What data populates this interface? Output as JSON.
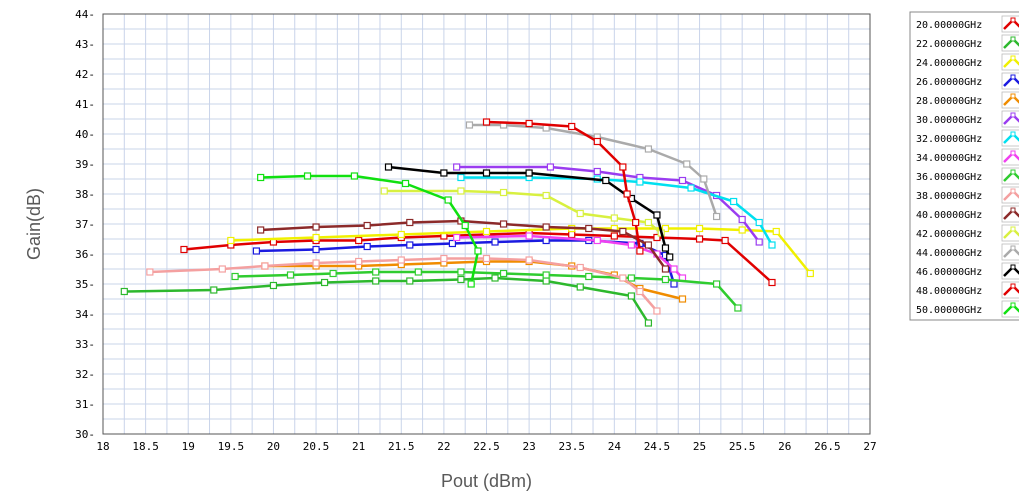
{
  "chart_data": {
    "type": "line",
    "title": "",
    "xlabel": "Pout (dBm)",
    "ylabel": "Gain(dB)",
    "xlim": [
      18,
      27
    ],
    "ylim": [
      30,
      44
    ],
    "x_ticks": [
      "18",
      "18.5",
      "19",
      "19.5",
      "20",
      "20.5",
      "21",
      "21.5",
      "22",
      "22.5",
      "23",
      "23.5",
      "24",
      "24.5",
      "25",
      "25.5",
      "26",
      "26.5",
      "27"
    ],
    "y_ticks": [
      "30",
      "31",
      "32",
      "33",
      "34",
      "35",
      "36",
      "37",
      "38",
      "39",
      "40",
      "41",
      "42",
      "43",
      "44"
    ],
    "grid": true,
    "legend_position": "right",
    "series": [
      {
        "name": "20.00000GHz",
        "color": "#e00000",
        "points": [
          [
            18.95,
            36.15
          ],
          [
            19.5,
            36.3
          ],
          [
            20,
            36.4
          ],
          [
            20.5,
            36.45
          ],
          [
            21,
            36.45
          ],
          [
            21.5,
            36.55
          ],
          [
            22,
            36.6
          ],
          [
            22.5,
            36.65
          ],
          [
            23,
            36.7
          ],
          [
            23.5,
            36.65
          ],
          [
            24,
            36.6
          ],
          [
            24.5,
            36.55
          ],
          [
            25,
            36.5
          ],
          [
            25.3,
            36.45
          ],
          [
            25.85,
            35.05
          ]
        ]
      },
      {
        "name": "22.00000GHz",
        "color": "#2db82d",
        "points": [
          [
            18.25,
            34.75
          ],
          [
            19.3,
            34.8
          ],
          [
            20,
            34.95
          ],
          [
            20.6,
            35.05
          ],
          [
            21.2,
            35.1
          ],
          [
            21.6,
            35.1
          ],
          [
            22.2,
            35.15
          ],
          [
            22.6,
            35.2
          ],
          [
            23.2,
            35.1
          ],
          [
            23.6,
            34.9
          ],
          [
            24.2,
            34.6
          ],
          [
            24.4,
            33.7
          ]
        ]
      },
      {
        "name": "24.00000GHz",
        "color": "#f0f000",
        "points": [
          [
            19.5,
            36.45
          ],
          [
            20.5,
            36.55
          ],
          [
            21.5,
            36.65
          ],
          [
            22.5,
            36.75
          ],
          [
            23.5,
            36.85
          ],
          [
            24,
            36.85
          ],
          [
            24.6,
            36.85
          ],
          [
            25,
            36.85
          ],
          [
            25.5,
            36.8
          ],
          [
            25.9,
            36.75
          ],
          [
            26.3,
            35.35
          ]
        ]
      },
      {
        "name": "26.00000GHz",
        "color": "#1a1ae0",
        "points": [
          [
            19.8,
            36.1
          ],
          [
            20.5,
            36.15
          ],
          [
            21.1,
            36.25
          ],
          [
            21.6,
            36.3
          ],
          [
            22.1,
            36.35
          ],
          [
            22.6,
            36.4
          ],
          [
            23.2,
            36.45
          ],
          [
            23.7,
            36.45
          ],
          [
            24.3,
            36.35
          ],
          [
            24.6,
            35.95
          ],
          [
            24.7,
            35.0
          ]
        ]
      },
      {
        "name": "28.00000GHz",
        "color": "#f08c00",
        "points": [
          [
            19.9,
            35.6
          ],
          [
            20.5,
            35.6
          ],
          [
            21.0,
            35.6
          ],
          [
            21.5,
            35.65
          ],
          [
            22,
            35.7
          ],
          [
            22.5,
            35.75
          ],
          [
            23,
            35.75
          ],
          [
            23.5,
            35.6
          ],
          [
            24.0,
            35.3
          ],
          [
            24.3,
            34.85
          ],
          [
            24.8,
            34.5
          ]
        ]
      },
      {
        "name": "30.00000GHz",
        "color": "#9a3cf0",
        "points": [
          [
            22.15,
            38.9
          ],
          [
            23.25,
            38.9
          ],
          [
            23.8,
            38.75
          ],
          [
            24.3,
            38.55
          ],
          [
            24.8,
            38.45
          ],
          [
            25.2,
            37.95
          ],
          [
            25.5,
            37.15
          ],
          [
            25.7,
            36.4
          ]
        ]
      },
      {
        "name": "32.00000GHz",
        "color": "#00e0f0",
        "points": [
          [
            22.2,
            38.55
          ],
          [
            23,
            38.55
          ],
          [
            23.8,
            38.5
          ],
          [
            24.3,
            38.4
          ],
          [
            24.9,
            38.2
          ],
          [
            25.4,
            37.75
          ],
          [
            25.7,
            37.05
          ],
          [
            25.85,
            36.3
          ]
        ]
      },
      {
        "name": "34.00000GHz",
        "color": "#f040f0",
        "points": [
          [
            22.15,
            36.55
          ],
          [
            23,
            36.6
          ],
          [
            23.8,
            36.45
          ],
          [
            24.2,
            36.3
          ],
          [
            24.5,
            36.0
          ],
          [
            24.7,
            35.5
          ],
          [
            24.8,
            35.2
          ]
        ]
      },
      {
        "name": "36.00000GHz",
        "color": "#2fcc2f",
        "points": [
          [
            19.55,
            35.25
          ],
          [
            20.2,
            35.3
          ],
          [
            20.7,
            35.35
          ],
          [
            21.2,
            35.4
          ],
          [
            21.7,
            35.4
          ],
          [
            22.2,
            35.4
          ],
          [
            22.7,
            35.35
          ],
          [
            23.2,
            35.3
          ],
          [
            23.7,
            35.25
          ],
          [
            24.2,
            35.2
          ],
          [
            24.6,
            35.15
          ],
          [
            25.2,
            35.0
          ],
          [
            25.45,
            34.2
          ]
        ]
      },
      {
        "name": "38.00000GHz",
        "color": "#f4a0a0",
        "points": [
          [
            18.55,
            35.4
          ],
          [
            19.4,
            35.5
          ],
          [
            19.9,
            35.6
          ],
          [
            20.5,
            35.7
          ],
          [
            21,
            35.75
          ],
          [
            21.5,
            35.8
          ],
          [
            22,
            35.85
          ],
          [
            22.5,
            35.85
          ],
          [
            23,
            35.8
          ],
          [
            23.6,
            35.55
          ],
          [
            24.1,
            35.2
          ],
          [
            24.3,
            34.75
          ],
          [
            24.5,
            34.1
          ]
        ]
      },
      {
        "name": "40.00000GHz",
        "color": "#8c2a2a",
        "points": [
          [
            19.85,
            36.8
          ],
          [
            20.5,
            36.9
          ],
          [
            21.1,
            36.95
          ],
          [
            21.6,
            37.05
          ],
          [
            22.2,
            37.1
          ],
          [
            22.7,
            37.0
          ],
          [
            23.2,
            36.9
          ],
          [
            23.7,
            36.85
          ],
          [
            24.1,
            36.75
          ],
          [
            24.4,
            36.3
          ],
          [
            24.6,
            35.5
          ]
        ]
      },
      {
        "name": "42.00000GHz",
        "color": "#d8f040",
        "points": [
          [
            21.3,
            38.1
          ],
          [
            22.2,
            38.1
          ],
          [
            22.7,
            38.05
          ],
          [
            23.2,
            37.95
          ],
          [
            23.6,
            37.35
          ],
          [
            24.0,
            37.2
          ],
          [
            24.4,
            37.05
          ],
          [
            24.55,
            36.7
          ]
        ]
      },
      {
        "name": "44.00000GHz",
        "color": "#aaaaaa",
        "points": [
          [
            22.3,
            40.3
          ],
          [
            22.7,
            40.3
          ],
          [
            23.2,
            40.2
          ],
          [
            23.8,
            39.9
          ],
          [
            24.4,
            39.5
          ],
          [
            24.85,
            39.0
          ],
          [
            25.05,
            38.5
          ],
          [
            25.2,
            37.25
          ]
        ]
      },
      {
        "name": "46.00000GHz",
        "color": "#000000",
        "points": [
          [
            21.35,
            38.9
          ],
          [
            22,
            38.7
          ],
          [
            22.5,
            38.7
          ],
          [
            23,
            38.7
          ],
          [
            23.9,
            38.45
          ],
          [
            24.2,
            37.85
          ],
          [
            24.5,
            37.3
          ],
          [
            24.6,
            36.2
          ],
          [
            24.65,
            35.9
          ]
        ]
      },
      {
        "name": "48.00000GHz",
        "color": "#e00000",
        "points": [
          [
            22.5,
            40.4
          ],
          [
            23,
            40.35
          ],
          [
            23.5,
            40.25
          ],
          [
            23.8,
            39.75
          ],
          [
            24.1,
            38.9
          ],
          [
            24.15,
            38.0
          ],
          [
            24.25,
            37.05
          ],
          [
            24.3,
            36.1
          ]
        ]
      },
      {
        "name": "50.00000GHz",
        "color": "#10e010",
        "points": [
          [
            19.85,
            38.55
          ],
          [
            20.4,
            38.6
          ],
          [
            20.95,
            38.6
          ],
          [
            21.55,
            38.35
          ],
          [
            22.05,
            37.8
          ],
          [
            22.25,
            36.95
          ],
          [
            22.4,
            36.1
          ],
          [
            22.32,
            35.0
          ]
        ]
      }
    ]
  }
}
